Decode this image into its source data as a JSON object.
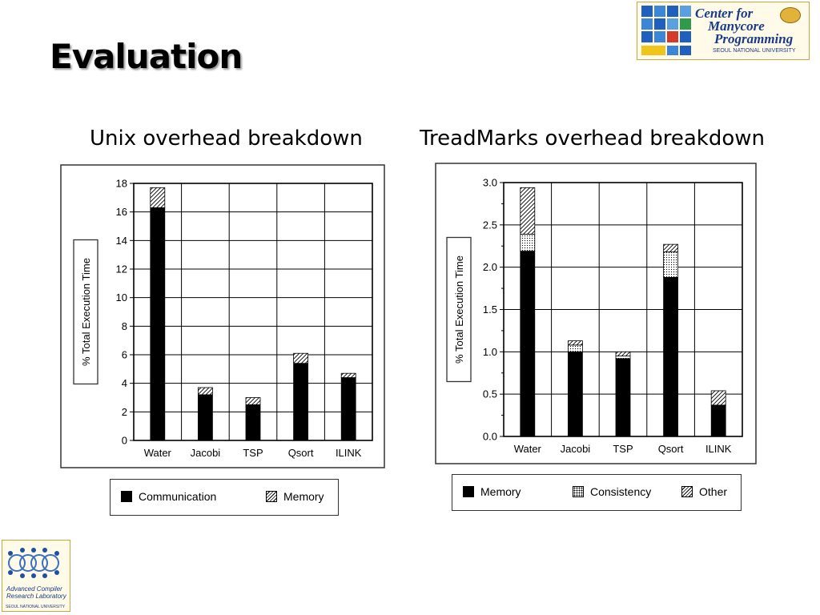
{
  "slide": {
    "title": "Evaluation",
    "subtitle_left": "Unix overhead breakdown",
    "subtitle_right": "TreadMarks overhead breakdown"
  },
  "logos": {
    "cmp": {
      "line1": "Center for",
      "line2": "Manycore",
      "line3": "Programming",
      "line4": "SEOUL NATIONAL UNIVERSITY"
    },
    "acrl": {
      "line1": "Advanced Compiler",
      "line2": "Research Laboratory",
      "line3": "SEOUL NATIONAL UNIVERSITY"
    }
  },
  "colors": {
    "bar_fill": "#000000",
    "frame": "#333333",
    "logo_blue": "#1a3a8a",
    "logo_gold": "#c7a640"
  },
  "chart_data": [
    {
      "type": "bar",
      "stacked": true,
      "ylabel": "% Total Execution Time",
      "ylim": [
        0,
        18
      ],
      "yticks": [
        0,
        2,
        4,
        6,
        8,
        10,
        12,
        14,
        16,
        18
      ],
      "grid": true,
      "categories": [
        "Water",
        "Jacobi",
        "TSP",
        "Qsort",
        "ILINK"
      ],
      "series": [
        {
          "name": "Communication",
          "pattern": "solid",
          "values": [
            16.3,
            3.2,
            2.5,
            5.4,
            4.4
          ]
        },
        {
          "name": "Memory",
          "pattern": "hatch",
          "values": [
            1.4,
            0.5,
            0.5,
            0.7,
            0.3
          ]
        }
      ],
      "legend_position": "bottom"
    },
    {
      "type": "bar",
      "stacked": true,
      "ylabel": "% Total Execution Time",
      "ylim": [
        0,
        3.0
      ],
      "yticks": [
        "0.0",
        "0.5",
        "1.0",
        "1.5",
        "2.0",
        "2.5",
        "3.0"
      ],
      "grid": true,
      "categories": [
        "Water",
        "Jacobi",
        "TSP",
        "Qsort",
        "ILINK"
      ],
      "series": [
        {
          "name": "Memory",
          "pattern": "solid",
          "values": [
            2.19,
            1.0,
            0.92,
            1.88,
            0.37
          ]
        },
        {
          "name": "Consistency",
          "pattern": "dots",
          "values": [
            0.2,
            0.08,
            0.03,
            0.3,
            0.0
          ]
        },
        {
          "name": "Other",
          "pattern": "hatch",
          "values": [
            0.55,
            0.05,
            0.05,
            0.09,
            0.17
          ]
        }
      ],
      "legend_position": "bottom"
    }
  ]
}
